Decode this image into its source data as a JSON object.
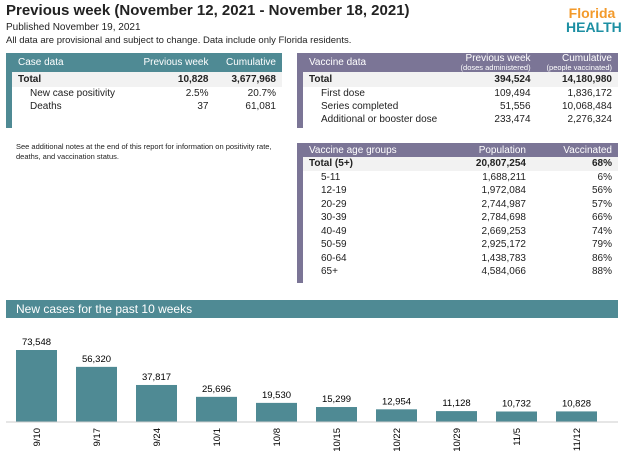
{
  "header": {
    "title": "Previous week (November 12, 2021 - November 18, 2021)",
    "published": "Published November 19, 2021",
    "note": "All data are provisional and subject to change. Data include only Florida residents.",
    "logo": {
      "line1": "Florida",
      "line2": "HEALTH"
    }
  },
  "case_table": {
    "columns": [
      "Case data",
      "Previous week",
      "Cumulative"
    ],
    "rows": [
      [
        "Total",
        "10,828",
        "3,677,968"
      ],
      [
        "New case positivity",
        "2.5%",
        "20.7%"
      ],
      [
        "Deaths",
        "37",
        "61,081"
      ]
    ]
  },
  "vaccine_table": {
    "columns": [
      "Vaccine data",
      "Previous week",
      "Cumulative"
    ],
    "subcolumns": [
      "(doses administered)",
      "(people vaccinated)"
    ],
    "rows": [
      [
        "Total",
        "394,524",
        "14,180,980"
      ],
      [
        "First dose",
        "109,494",
        "1,836,172"
      ],
      [
        "Series completed",
        "51,556",
        "10,068,484"
      ],
      [
        "Additional or booster dose",
        "233,474",
        "2,276,324"
      ]
    ]
  },
  "side_note": "See additional notes at the end of this report for information on positivity rate, deaths, and vaccination status.",
  "age_table": {
    "columns": [
      "Vaccine age groups",
      "Population",
      "Vaccinated"
    ],
    "rows": [
      [
        "Total (5+)",
        "20,807,254",
        "68%"
      ],
      [
        "5-11",
        "1,688,211",
        "6%"
      ],
      [
        "12-19",
        "1,972,084",
        "56%"
      ],
      [
        "20-29",
        "2,744,987",
        "57%"
      ],
      [
        "30-39",
        "2,784,698",
        "66%"
      ],
      [
        "40-49",
        "2,669,253",
        "74%"
      ],
      [
        "50-59",
        "2,925,172",
        "79%"
      ],
      [
        "60-64",
        "1,438,783",
        "86%"
      ],
      [
        "65+",
        "4,584,066",
        "88%"
      ]
    ]
  },
  "colors": {
    "case": "#4f8a94",
    "vaccine": "#7b7596",
    "bar": "#4f8a94"
  },
  "chart_data": {
    "type": "bar",
    "title": "New cases for the past 10 weeks",
    "categories": [
      "9/10",
      "9/17",
      "9/24",
      "10/1",
      "10/8",
      "10/15",
      "10/22",
      "10/29",
      "11/5",
      "11/12"
    ],
    "values": [
      73548,
      56320,
      37817,
      25696,
      19530,
      15299,
      12954,
      11128,
      10732,
      10828
    ],
    "data_labels": [
      "73,548",
      "56,320",
      "37,817",
      "25,696",
      "19,530",
      "15,299",
      "12,954",
      "11,128",
      "10,732",
      "10,828"
    ]
  }
}
